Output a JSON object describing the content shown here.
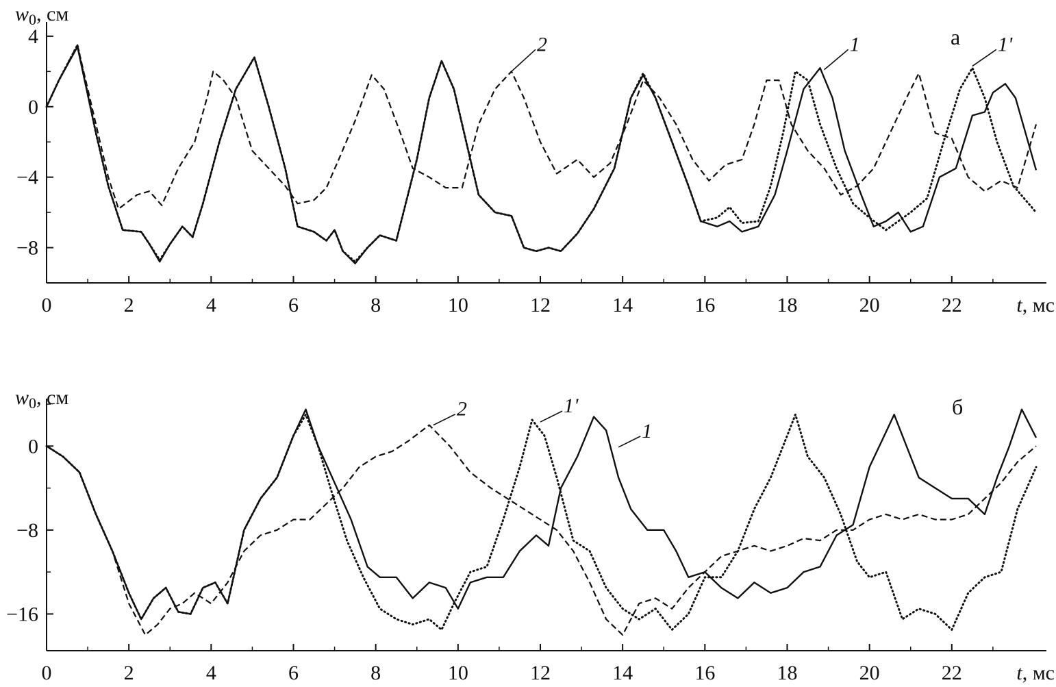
{
  "chart_data": [
    {
      "type": "line",
      "panel_label": "а",
      "ylabel_var": "w",
      "ylabel_sub": "0",
      "ylabel_unit": ", см",
      "xlabel_var": "t",
      "xlabel_unit": ", мс",
      "xlim": [
        0,
        24.3
      ],
      "ylim": [
        -10,
        4.5
      ],
      "xticks": [
        0,
        2,
        4,
        6,
        8,
        10,
        12,
        14,
        16,
        18,
        20,
        22
      ],
      "xtick_labels": [
        "0",
        "2",
        "4",
        "6",
        "8",
        "10",
        "12",
        "14",
        "16",
        "18",
        "20",
        "22"
      ],
      "yticks": [
        4,
        0,
        -4,
        -8
      ],
      "ytick_labels": [
        "4",
        "0",
        "−4",
        "−8"
      ],
      "series": [
        {
          "name": "1",
          "style": "solid",
          "color": "#111111",
          "x": [
            0,
            0.3,
            0.75,
            1.2,
            1.5,
            1.85,
            2.3,
            2.5,
            2.75,
            3.0,
            3.3,
            3.55,
            3.8,
            4.2,
            4.6,
            5.05,
            5.4,
            5.8,
            6.1,
            6.5,
            6.8,
            7.0,
            7.2,
            7.5,
            7.8,
            8.1,
            8.5,
            9.0,
            9.3,
            9.6,
            9.9,
            10.2,
            10.5,
            10.9,
            11.3,
            11.6,
            11.9,
            12.2,
            12.5,
            12.9,
            13.3,
            13.8,
            14.2,
            14.5,
            14.8,
            15.2,
            15.6,
            15.9,
            16.3,
            16.6,
            16.9,
            17.3,
            17.7,
            18.0,
            18.4,
            18.8,
            19.1,
            19.4,
            19.8,
            20.1,
            20.4,
            20.7,
            21.0,
            21.3,
            21.7,
            22.1,
            22.5,
            22.8,
            23.0,
            23.3,
            23.55,
            24.05
          ],
          "y": [
            0,
            1.5,
            3.4,
            -1.5,
            -4.5,
            -7.0,
            -7.1,
            -7.8,
            -8.8,
            -7.8,
            -6.8,
            -7.4,
            -5.5,
            -2.0,
            1.0,
            2.8,
            0.0,
            -3.5,
            -6.8,
            -7.1,
            -7.6,
            -7.0,
            -8.2,
            -8.9,
            -8.0,
            -7.3,
            -7.6,
            -3.0,
            0.5,
            2.6,
            1.0,
            -2.0,
            -5.0,
            -6.0,
            -6.2,
            -8.0,
            -8.2,
            -8.0,
            -8.2,
            -7.2,
            -5.8,
            -3.5,
            0.5,
            1.8,
            0.5,
            -2.0,
            -4.5,
            -6.5,
            -6.8,
            -6.5,
            -7.1,
            -6.8,
            -5.0,
            -2.5,
            1.0,
            2.2,
            0.5,
            -2.5,
            -5.0,
            -6.8,
            -6.5,
            -6.0,
            -7.1,
            -6.8,
            -4.0,
            -3.5,
            -0.5,
            -0.3,
            0.8,
            1.3,
            0.5,
            -3.6
          ]
        },
        {
          "name": "1'",
          "style": "dotted",
          "color": "#111111",
          "x": [
            0,
            0.3,
            0.75,
            1.2,
            1.5,
            1.85,
            2.3,
            2.5,
            2.75,
            3.0,
            3.3,
            3.55,
            3.8,
            4.2,
            4.6,
            5.05,
            5.4,
            5.8,
            6.1,
            6.5,
            6.8,
            7.0,
            7.2,
            7.5,
            7.8,
            8.1,
            8.5,
            9.0,
            9.3,
            9.6,
            9.9,
            10.2,
            10.5,
            10.9,
            11.3,
            11.6,
            11.9,
            12.2,
            12.5,
            12.9,
            13.3,
            13.8,
            14.2,
            14.5,
            14.8,
            15.2,
            15.6,
            15.9,
            16.3,
            16.6,
            16.9,
            17.3,
            17.6,
            17.9,
            18.2,
            18.5,
            18.8,
            19.2,
            19.6,
            20.0,
            20.4,
            20.7,
            21.0,
            21.4,
            21.8,
            22.2,
            22.5,
            22.8,
            23.1,
            23.5,
            24.05
          ],
          "y": [
            0,
            1.5,
            3.5,
            -1.5,
            -4.5,
            -7.0,
            -7.1,
            -7.8,
            -8.7,
            -7.8,
            -6.8,
            -7.4,
            -5.5,
            -2.0,
            1.0,
            2.8,
            0.0,
            -3.5,
            -6.8,
            -7.1,
            -7.6,
            -7.0,
            -8.2,
            -8.8,
            -8.0,
            -7.3,
            -7.6,
            -3.0,
            0.5,
            2.6,
            1.0,
            -2.0,
            -5.0,
            -6.0,
            -6.2,
            -8.0,
            -8.2,
            -8.0,
            -8.2,
            -7.2,
            -5.8,
            -3.5,
            0.5,
            1.9,
            0.5,
            -2.0,
            -4.5,
            -6.5,
            -6.3,
            -5.7,
            -6.6,
            -6.5,
            -4.5,
            -1.5,
            2.0,
            1.5,
            -1.0,
            -3.5,
            -5.5,
            -6.3,
            -7.0,
            -6.5,
            -6.0,
            -5.2,
            -2.0,
            1.0,
            2.2,
            0.5,
            -2.0,
            -4.5,
            -6.0
          ]
        },
        {
          "name": "2",
          "style": "dashed",
          "color": "#111111",
          "x": [
            0,
            0.3,
            0.75,
            1.2,
            1.5,
            1.75,
            2.2,
            2.5,
            2.8,
            3.2,
            3.6,
            3.9,
            4.05,
            4.3,
            4.6,
            5.0,
            5.4,
            5.8,
            6.1,
            6.5,
            6.8,
            7.1,
            7.5,
            7.9,
            8.2,
            8.6,
            8.9,
            9.3,
            9.7,
            10.1,
            10.5,
            10.9,
            11.3,
            11.6,
            12.0,
            12.4,
            12.9,
            13.3,
            13.7,
            14.1,
            14.5,
            14.9,
            15.3,
            15.7,
            16.1,
            16.5,
            16.9,
            17.2,
            17.5,
            17.8,
            18.1,
            18.5,
            18.9,
            19.3,
            19.7,
            20.1,
            20.5,
            20.9,
            21.2,
            21.6,
            22.0,
            22.4,
            22.8,
            23.2,
            23.6,
            24.05
          ],
          "y": [
            0,
            1.5,
            3.5,
            -1.0,
            -4.0,
            -5.8,
            -5.0,
            -4.8,
            -5.6,
            -3.5,
            -2.0,
            0.5,
            2.0,
            1.5,
            0.5,
            -2.5,
            -3.5,
            -4.5,
            -5.5,
            -5.3,
            -4.6,
            -3.0,
            -0.8,
            1.8,
            1.0,
            -1.5,
            -3.5,
            -4.0,
            -4.6,
            -4.6,
            -1.0,
            1.0,
            2.0,
            0.5,
            -2.0,
            -3.8,
            -3.0,
            -4.0,
            -3.2,
            -1.0,
            1.5,
            0.5,
            -1.0,
            -3.0,
            -4.2,
            -3.3,
            -3.0,
            -1.0,
            1.5,
            1.5,
            -1.0,
            -2.5,
            -3.5,
            -5.0,
            -4.5,
            -3.5,
            -1.5,
            0.5,
            1.9,
            -1.5,
            -1.8,
            -4.0,
            -4.8,
            -4.2,
            -4.6,
            -1.0
          ]
        }
      ],
      "annotations": [
        {
          "text": "2",
          "tx": 11.3,
          "ty": 2.0,
          "lx": 11.95,
          "ly": 3.4
        },
        {
          "text": "1",
          "tx": 18.9,
          "ty": 2.1,
          "lx": 19.55,
          "ly": 3.4
        },
        {
          "text": "1'",
          "tx": 22.5,
          "ty": 2.3,
          "lx": 23.15,
          "ly": 3.4
        }
      ]
    },
    {
      "type": "line",
      "panel_label": "б",
      "ylabel_var": "w",
      "ylabel_sub": "0",
      "ylabel_unit": ", см",
      "xlabel_var": "t",
      "xlabel_unit": ", мс",
      "xlim": [
        0,
        24.3
      ],
      "ylim": [
        -19.5,
        4
      ],
      "xticks": [
        0,
        2,
        4,
        6,
        8,
        10,
        12,
        14,
        16,
        18,
        20,
        22
      ],
      "xtick_labels": [
        "0",
        "2",
        "4",
        "6",
        "8",
        "10",
        "12",
        "14",
        "16",
        "18",
        "20",
        "22"
      ],
      "yticks": [
        0,
        -8,
        -16
      ],
      "ytick_labels": [
        "0",
        "−8",
        "−16"
      ],
      "series": [
        {
          "name": "1",
          "style": "solid",
          "color": "#111111",
          "x": [
            0,
            0.4,
            0.8,
            1.2,
            1.6,
            2.0,
            2.3,
            2.6,
            2.9,
            3.2,
            3.5,
            3.8,
            4.1,
            4.4,
            4.8,
            5.2,
            5.6,
            6.0,
            6.3,
            6.6,
            7.0,
            7.4,
            7.8,
            8.1,
            8.5,
            8.9,
            9.3,
            9.7,
            10.0,
            10.3,
            10.7,
            11.1,
            11.5,
            11.9,
            12.2,
            12.5,
            12.9,
            13.3,
            13.6,
            13.9,
            14.2,
            14.6,
            15.0,
            15.3,
            15.6,
            16.0,
            16.4,
            16.8,
            17.2,
            17.6,
            18.0,
            18.4,
            18.8,
            19.2,
            19.6,
            20.0,
            20.3,
            20.6,
            20.9,
            21.2,
            21.6,
            22.0,
            22.4,
            22.8,
            23.1,
            23.4,
            23.7,
            24.05
          ],
          "y": [
            0,
            -1.0,
            -2.5,
            -6.5,
            -10.0,
            -14.0,
            -16.5,
            -14.5,
            -13.5,
            -15.8,
            -16.0,
            -13.5,
            -13.0,
            -15.0,
            -8.0,
            -5.0,
            -3.0,
            1.0,
            3.5,
            0.0,
            -3.5,
            -7.0,
            -11.5,
            -12.5,
            -12.5,
            -14.5,
            -13.0,
            -13.5,
            -15.5,
            -13.0,
            -12.5,
            -12.5,
            -10.0,
            -8.5,
            -9.5,
            -4.0,
            -1.0,
            2.8,
            1.5,
            -3.0,
            -6.0,
            -8.0,
            -8.0,
            -10.0,
            -12.5,
            -12.0,
            -13.5,
            -14.5,
            -13.0,
            -14.0,
            -13.5,
            -12.0,
            -11.5,
            -8.5,
            -7.5,
            -2.0,
            0.5,
            3.0,
            0.0,
            -3.0,
            -4.0,
            -5.0,
            -5.0,
            -6.5,
            -3.0,
            0.0,
            3.5,
            0.8
          ]
        },
        {
          "name": "1'",
          "style": "dotted",
          "color": "#111111",
          "x": [
            0,
            0.4,
            0.8,
            1.2,
            1.6,
            2.0,
            2.3,
            2.6,
            2.9,
            3.2,
            3.5,
            3.8,
            4.1,
            4.4,
            4.8,
            5.2,
            5.6,
            6.0,
            6.3,
            6.6,
            6.9,
            7.3,
            7.7,
            8.1,
            8.5,
            8.9,
            9.3,
            9.6,
            9.9,
            10.3,
            10.7,
            11.1,
            11.5,
            11.8,
            12.1,
            12.4,
            12.8,
            13.2,
            13.6,
            14.0,
            14.4,
            14.8,
            15.2,
            15.6,
            16.0,
            16.4,
            16.8,
            17.2,
            17.6,
            18.0,
            18.2,
            18.5,
            18.9,
            19.3,
            19.7,
            20.0,
            20.4,
            20.8,
            21.2,
            21.6,
            22.0,
            22.4,
            22.8,
            23.2,
            23.6,
            24.05
          ],
          "y": [
            0,
            -1.0,
            -2.5,
            -6.5,
            -10.0,
            -14.0,
            -16.5,
            -14.5,
            -13.5,
            -15.8,
            -16.0,
            -13.5,
            -13.0,
            -15.0,
            -8.0,
            -5.0,
            -3.0,
            1.0,
            3.0,
            0.0,
            -4.0,
            -9.0,
            -12.5,
            -15.5,
            -16.5,
            -17.0,
            -16.5,
            -17.5,
            -15.0,
            -12.0,
            -11.5,
            -7.0,
            -2.0,
            2.5,
            1.0,
            -3.0,
            -9.0,
            -10.0,
            -13.5,
            -15.5,
            -16.5,
            -15.5,
            -17.5,
            -16.0,
            -12.5,
            -12.5,
            -10.0,
            -6.0,
            -3.0,
            1.0,
            3.0,
            -1.0,
            -3.0,
            -6.5,
            -11.0,
            -12.5,
            -12.0,
            -16.5,
            -15.5,
            -16.0,
            -17.5,
            -14.0,
            -12.5,
            -12.0,
            -6.0,
            -2.0
          ]
        },
        {
          "name": "2",
          "style": "dashed",
          "color": "#111111",
          "x": [
            0,
            0.4,
            0.8,
            1.2,
            1.6,
            2.0,
            2.4,
            2.7,
            3.0,
            3.3,
            3.6,
            4.0,
            4.4,
            4.8,
            5.2,
            5.6,
            6.0,
            6.4,
            6.8,
            7.2,
            7.6,
            8.0,
            8.4,
            8.8,
            9.3,
            9.8,
            10.3,
            10.8,
            11.2,
            11.6,
            12.0,
            12.4,
            12.8,
            13.2,
            13.6,
            14.0,
            14.4,
            14.8,
            15.2,
            15.6,
            16.0,
            16.4,
            16.8,
            17.2,
            17.6,
            18.0,
            18.4,
            18.8,
            19.2,
            19.6,
            20.0,
            20.4,
            20.8,
            21.2,
            21.6,
            22.0,
            22.4,
            22.8,
            23.2,
            23.6,
            24.05
          ],
          "y": [
            0,
            -1.0,
            -2.5,
            -6.5,
            -10.0,
            -15.0,
            -18.0,
            -17.0,
            -15.5,
            -15.0,
            -14.0,
            -15.0,
            -13.0,
            -10.0,
            -8.5,
            -8.0,
            -7.0,
            -7.0,
            -5.5,
            -4.0,
            -2.0,
            -1.0,
            -0.5,
            0.5,
            2.0,
            0.0,
            -2.5,
            -4.0,
            -5.0,
            -6.0,
            -7.0,
            -8.0,
            -10.0,
            -13.0,
            -16.5,
            -18.0,
            -15.0,
            -14.5,
            -15.5,
            -13.5,
            -12.0,
            -10.5,
            -10.0,
            -9.5,
            -10.0,
            -9.5,
            -8.8,
            -9.0,
            -8.0,
            -8.0,
            -7.0,
            -6.5,
            -7.0,
            -6.5,
            -7.0,
            -7.0,
            -6.5,
            -5.0,
            -3.5,
            -1.5,
            0.0
          ]
        }
      ],
      "annotations": [
        {
          "text": "2",
          "tx": 9.4,
          "ty": 2.0,
          "lx": 10.0,
          "ly": 3.3
        },
        {
          "text": "1'",
          "tx": 12.0,
          "ty": 2.3,
          "lx": 12.6,
          "ly": 3.6
        },
        {
          "text": "1",
          "tx": 13.9,
          "ty": -0.1,
          "lx": 14.5,
          "ly": 1.2
        }
      ]
    }
  ]
}
